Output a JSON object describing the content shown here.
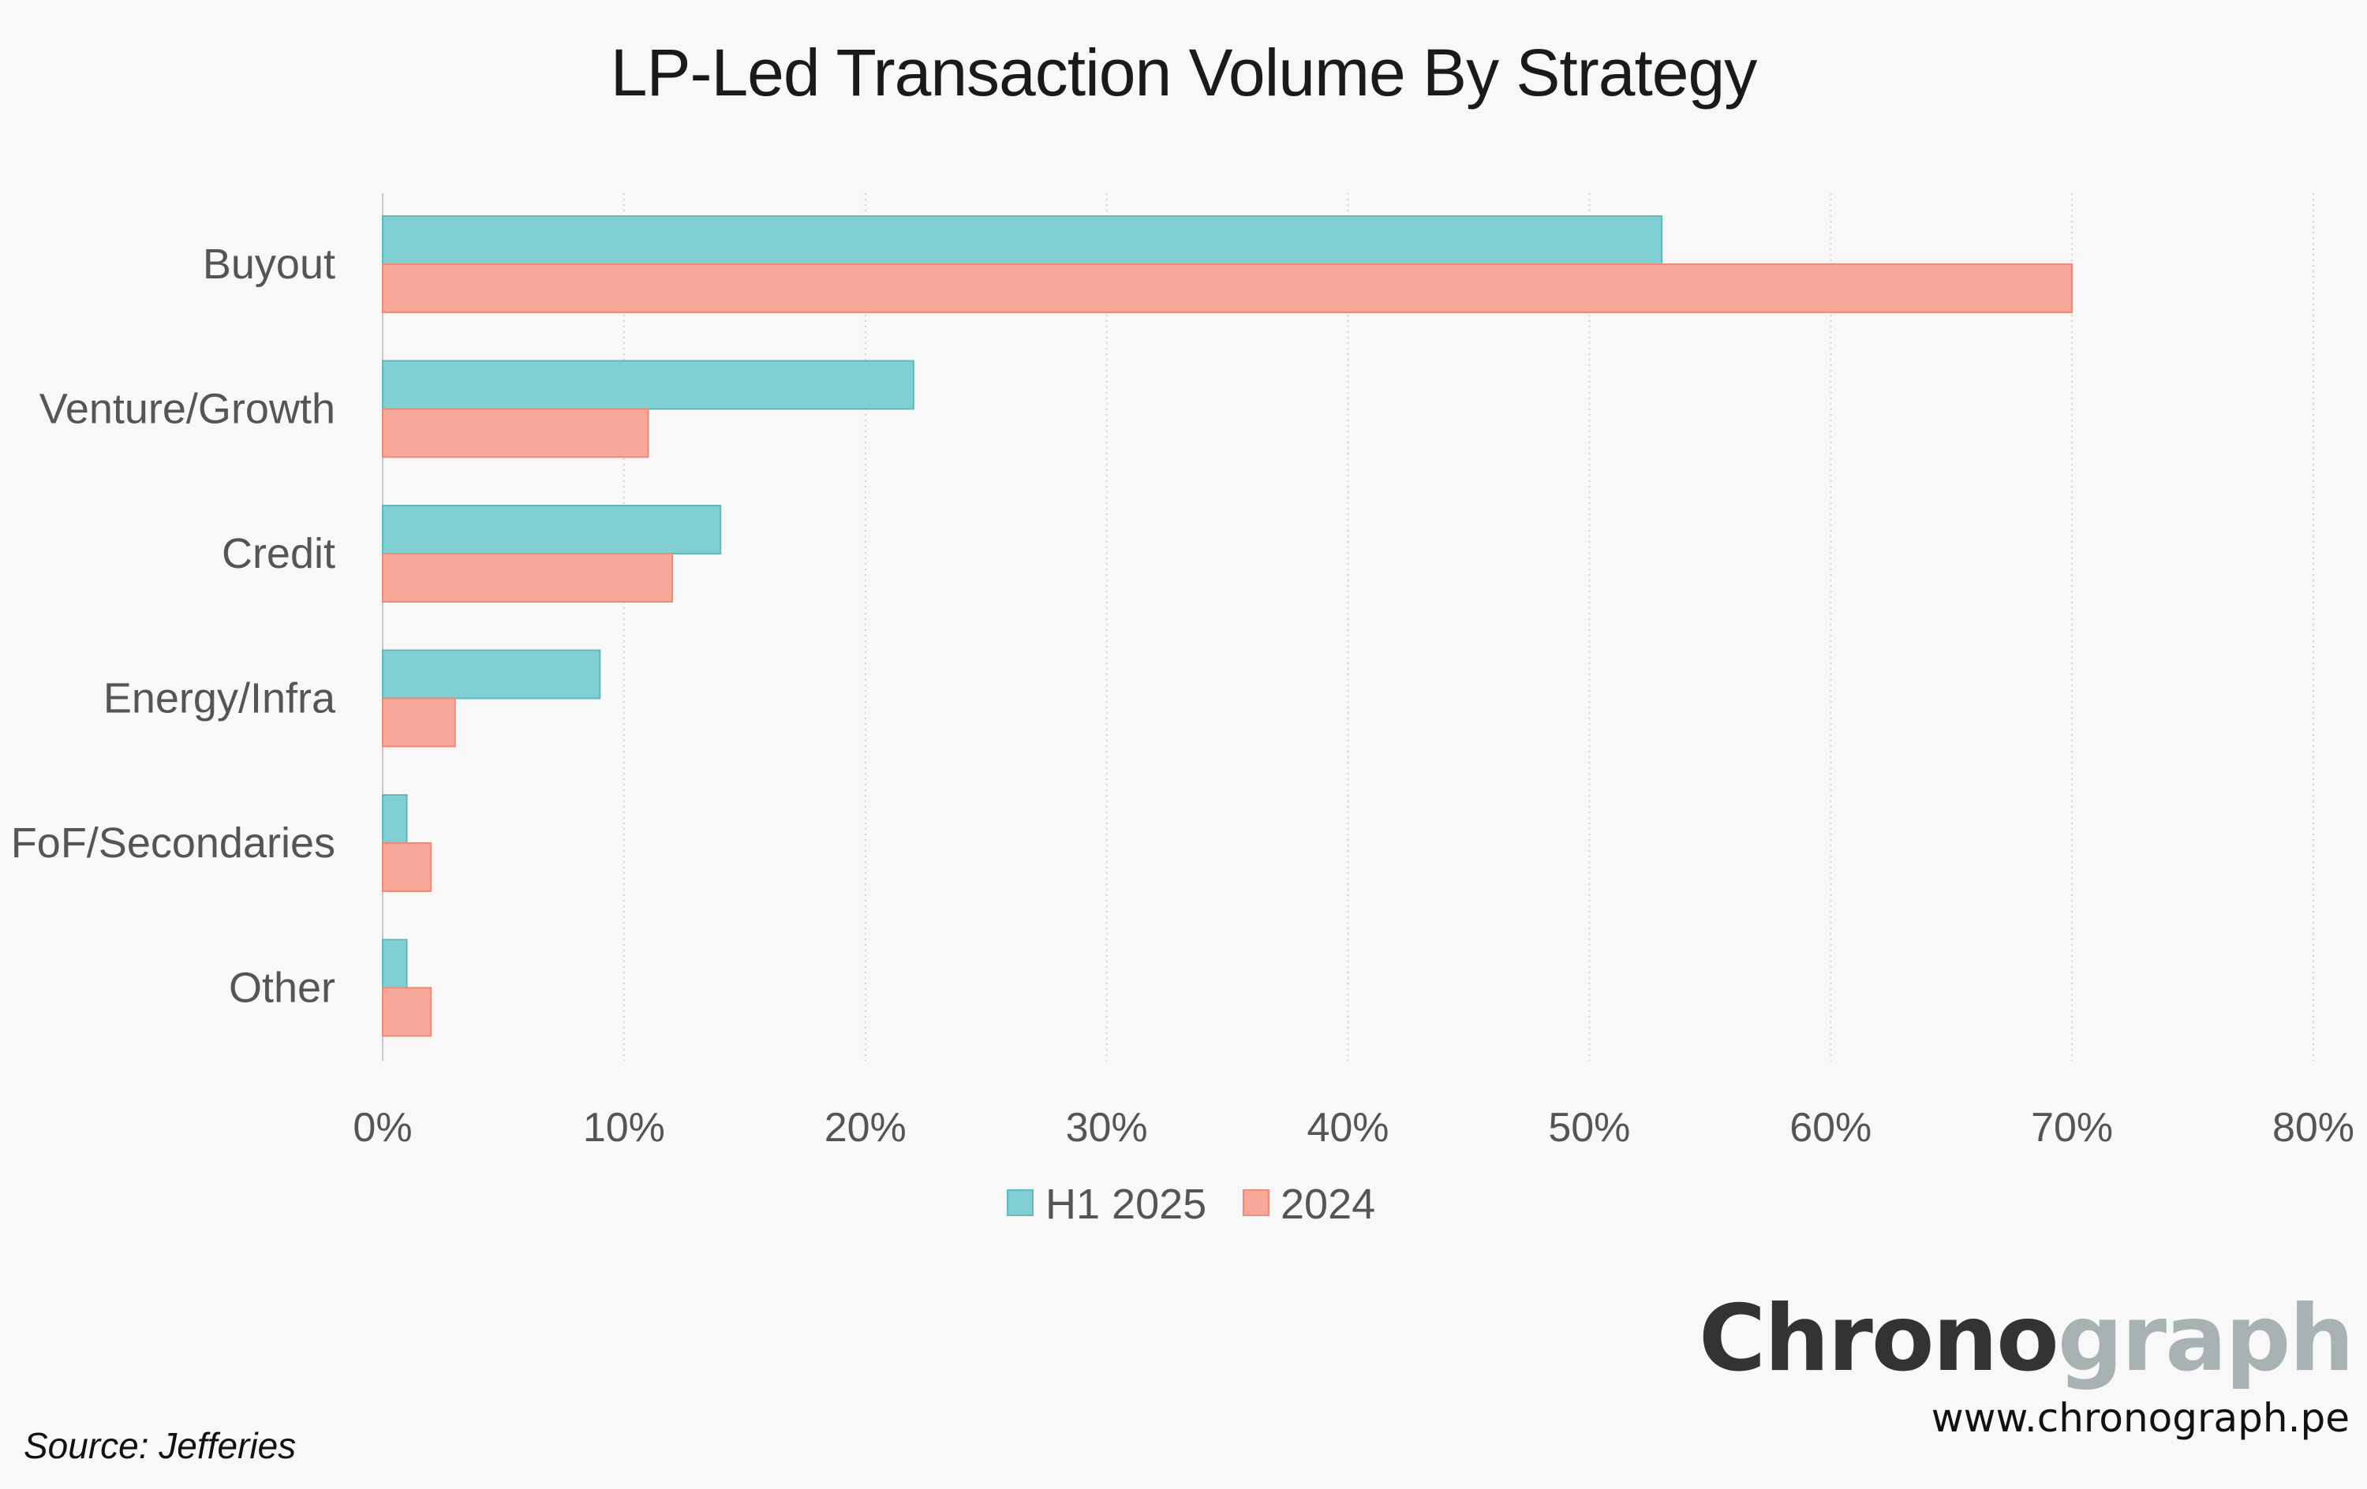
{
  "chart_data": {
    "type": "bar",
    "orientation": "horizontal",
    "title": "LP-Led Transaction Volume By Strategy",
    "categories": [
      "Buyout",
      "Venture/Growth",
      "Credit",
      "Energy/Infra",
      "FoF/Secondaries",
      "Other"
    ],
    "series": [
      {
        "name": "H1 2025",
        "values": [
          53,
          22,
          14,
          9,
          1,
          1
        ],
        "color": "#82cfd3"
      },
      {
        "name": "2024",
        "values": [
          70,
          11,
          12,
          3,
          2,
          2
        ],
        "color": "#f7a898"
      }
    ],
    "xlim": [
      0,
      80
    ],
    "xticks": [
      "0%",
      "10%",
      "20%",
      "30%",
      "40%",
      "50%",
      "60%",
      "70%",
      "80%"
    ],
    "grid": "vertical dotted",
    "legend": "bottom-center"
  },
  "footer": {
    "source": "Source: Jefferies",
    "brand_main": "Chrono",
    "brand_accent": "graph",
    "website": "www.chronograph.pe"
  }
}
